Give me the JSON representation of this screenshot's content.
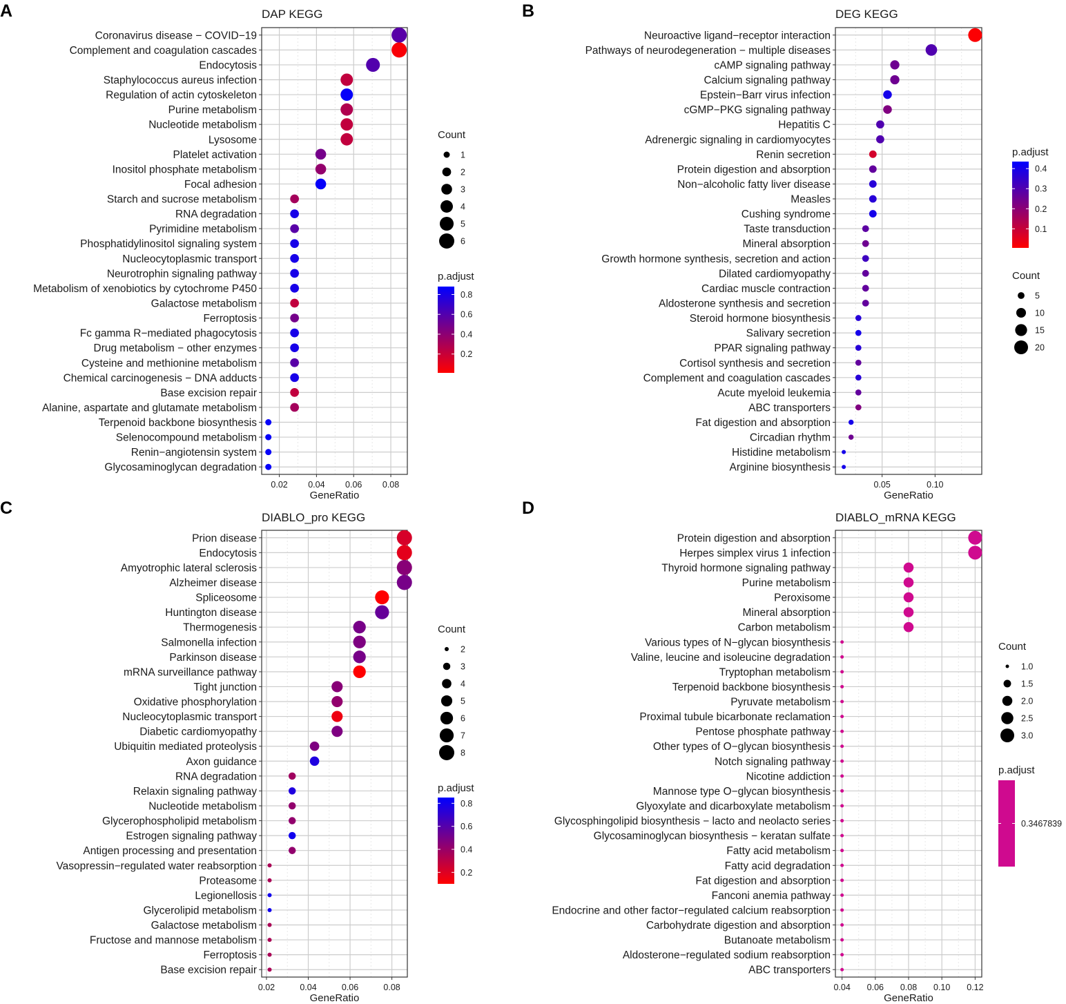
{
  "figure": {
    "panel_letters": [
      "A",
      "B",
      "C",
      "D"
    ]
  },
  "chart_data": [
    {
      "panel": "A",
      "type": "scatter",
      "title": "DAP KEGG",
      "xlabel": "GeneRatio",
      "xlim": [
        0.0105,
        0.0889
      ],
      "xticks": [
        0.02,
        0.04,
        0.06,
        0.08
      ],
      "xtick_labels": [
        "0.02",
        "0.04",
        "0.06",
        "0.08"
      ],
      "categories": [
        "Coronavirus disease − COVID−19",
        "Complement and coagulation cascades",
        "Endocytosis",
        "Staphylococcus aureus infection",
        "Regulation of actin cytoskeleton",
        "Purine metabolism",
        "Nucleotide metabolism",
        "Lysosome",
        "Platelet activation",
        "Inositol phosphate metabolism",
        "Focal adhesion",
        "Starch and sucrose metabolism",
        "RNA degradation",
        "Pyrimidine metabolism",
        "Phosphatidylinositol signaling system",
        "Nucleocytoplasmic transport",
        "Neurotrophin signaling pathway",
        "Metabolism of xenobiotics by cytochrome P450",
        "Galactose metabolism",
        "Ferroptosis",
        "Fc gamma R−mediated phagocytosis",
        "Drug metabolism − other enzymes",
        "Cysteine and methionine metabolism",
        "Chemical carcinogenesis − DNA adducts",
        "Base excision repair",
        "Alanine, aspartate and glutamate metabolism",
        "Terpenoid backbone biosynthesis",
        "Selenocompound metabolism",
        "Renin−angiotensin system",
        "Glycosaminoglycan degradation"
      ],
      "gene_ratio": [
        0.0845,
        0.0845,
        0.0704,
        0.0563,
        0.0563,
        0.0563,
        0.0563,
        0.0563,
        0.0423,
        0.0423,
        0.0423,
        0.0282,
        0.0282,
        0.0282,
        0.0282,
        0.0282,
        0.0282,
        0.0282,
        0.0282,
        0.0282,
        0.0282,
        0.0282,
        0.0282,
        0.0282,
        0.0282,
        0.0282,
        0.0141,
        0.0141,
        0.0141,
        0.0141
      ],
      "count": [
        6,
        6,
        5,
        4,
        4,
        4,
        4,
        4,
        3,
        3,
        3,
        2,
        2,
        2,
        2,
        2,
        2,
        2,
        2,
        2,
        2,
        2,
        2,
        2,
        2,
        2,
        1,
        1,
        1,
        1
      ],
      "p_adjust": [
        0.58,
        0.03,
        0.6,
        0.22,
        0.86,
        0.28,
        0.22,
        0.22,
        0.48,
        0.38,
        0.86,
        0.32,
        0.8,
        0.58,
        0.8,
        0.8,
        0.8,
        0.8,
        0.22,
        0.48,
        0.8,
        0.8,
        0.58,
        0.8,
        0.22,
        0.32,
        0.86,
        0.86,
        0.86,
        0.86
      ],
      "legend_count": {
        "title": "Count",
        "values": [
          1,
          2,
          3,
          4,
          5,
          6
        ],
        "labels": [
          "1",
          "2",
          "3",
          "4",
          "5",
          "6"
        ]
      },
      "legend_color": {
        "title": "p.adjust",
        "min": 0.01,
        "max": 0.88,
        "ticks": [
          0.2,
          0.4,
          0.6,
          0.8
        ],
        "labels": [
          "0.2",
          "0.4",
          "0.6",
          "0.8"
        ]
      },
      "size_domain": [
        1,
        6
      ],
      "size_range": [
        4.5,
        11
      ]
    },
    {
      "panel": "B",
      "type": "scatter",
      "title": "DEG KEGG",
      "xlabel": "GeneRatio",
      "xlim": [
        0.0059,
        0.1441
      ],
      "xticks": [
        0.05,
        0.1
      ],
      "xtick_labels": [
        "0.05",
        "0.10"
      ],
      "categories": [
        "Neuroactive ligand−receptor interaction",
        "Pathways of neurodegeneration − multiple diseases",
        "cAMP signaling pathway",
        "Calcium signaling pathway",
        "Epstein−Barr virus infection",
        "cGMP−PKG signaling pathway",
        "Hepatitis C",
        "Adrenergic signaling in cardiomyocytes",
        "Renin secretion",
        "Protein digestion and absorption",
        "Non−alcoholic fatty liver disease",
        "Measles",
        "Cushing syndrome",
        "Taste transduction",
        "Mineral absorption",
        "Growth hormone synthesis, secretion and action",
        "Dilated cardiomyopathy",
        "Cardiac muscle contraction",
        "Aldosterone synthesis and secretion",
        "Steroid hormone biosynthesis",
        "Salivary secretion",
        "PPAR signaling pathway",
        "Cortisol synthesis and secretion",
        "Complement and coagulation cascades",
        "Acute myeloid leukemia",
        "ABC transporters",
        "Fat digestion and absorption",
        "Circadian rhythm",
        "Histidine metabolism",
        "Arginine biosynthesis"
      ],
      "gene_ratio": [
        0.1378,
        0.0965,
        0.062,
        0.062,
        0.0551,
        0.0551,
        0.0482,
        0.0482,
        0.0413,
        0.0413,
        0.0413,
        0.0413,
        0.0413,
        0.0344,
        0.0344,
        0.0344,
        0.0344,
        0.0344,
        0.0344,
        0.0276,
        0.0276,
        0.0276,
        0.0276,
        0.0276,
        0.0276,
        0.0276,
        0.0207,
        0.0207,
        0.0138,
        0.0138
      ],
      "count": [
        20,
        14,
        9,
        9,
        8,
        8,
        7,
        7,
        6,
        6,
        6,
        6,
        6,
        5,
        5,
        5,
        5,
        5,
        5,
        4,
        4,
        4,
        4,
        4,
        4,
        4,
        3,
        3,
        2,
        2
      ],
      "p_adjust": [
        0.01,
        0.3,
        0.25,
        0.25,
        0.4,
        0.22,
        0.3,
        0.3,
        0.08,
        0.27,
        0.37,
        0.37,
        0.4,
        0.28,
        0.25,
        0.33,
        0.27,
        0.27,
        0.27,
        0.37,
        0.4,
        0.37,
        0.27,
        0.37,
        0.27,
        0.22,
        0.4,
        0.25,
        0.4,
        0.4
      ],
      "legend_count": {
        "title": "Count",
        "values": [
          5,
          10,
          15,
          20
        ],
        "labels": [
          "5",
          "10",
          "15",
          "20"
        ]
      },
      "legend_color": {
        "title": "p.adjust",
        "min": 0.005,
        "max": 0.435,
        "ticks": [
          0.1,
          0.2,
          0.3,
          0.4
        ],
        "labels": [
          "0.1",
          "0.2",
          "0.3",
          "0.4"
        ]
      },
      "size_domain": [
        2,
        20
      ],
      "size_range": [
        3,
        10
      ]
    },
    {
      "panel": "C",
      "type": "scatter",
      "title": "DIABLO_pro KEGG",
      "xlabel": "GeneRatio",
      "xlim": [
        0.0177,
        0.0874
      ],
      "xticks": [
        0.02,
        0.04,
        0.06,
        0.08
      ],
      "xtick_labels": [
        "0.02",
        "0.04",
        "0.06",
        "0.08"
      ],
      "categories": [
        "Prion disease",
        "Endocytosis",
        "Amyotrophic lateral sclerosis",
        "Alzheimer disease",
        "Spliceosome",
        "Huntington disease",
        "Thermogenesis",
        "Salmonella infection",
        "Parkinson disease",
        "mRNA surveillance pathway",
        "Tight junction",
        "Oxidative phosphorylation",
        "Nucleocytoplasmic transport",
        "Diabetic cardiomyopathy",
        "Ubiquitin mediated proteolysis",
        "Axon guidance",
        "RNA degradation",
        "Relaxin signaling pathway",
        "Nucleotide metabolism",
        "Glycerophospholipid metabolism",
        "Estrogen signaling pathway",
        "Antigen processing and presentation",
        "Vasopressin−regulated water reabsorption",
        "Proteasome",
        "Legionellosis",
        "Glycerolipid metabolism",
        "Galactose metabolism",
        "Fructose and mannose metabolism",
        "Ferroptosis",
        "Base excision repair"
      ],
      "gene_ratio": [
        0.086,
        0.086,
        0.086,
        0.086,
        0.0753,
        0.0753,
        0.0645,
        0.0645,
        0.0645,
        0.0645,
        0.0538,
        0.0538,
        0.0538,
        0.0538,
        0.043,
        0.043,
        0.0323,
        0.0323,
        0.0323,
        0.0323,
        0.0323,
        0.0323,
        0.0215,
        0.0215,
        0.0215,
        0.0215,
        0.0215,
        0.0215,
        0.0215,
        0.0215
      ],
      "count": [
        8,
        8,
        8,
        8,
        7,
        7,
        6,
        6,
        6,
        6,
        5,
        5,
        5,
        5,
        4,
        4,
        3,
        3,
        3,
        3,
        3,
        3,
        2,
        2,
        2,
        2,
        2,
        2,
        2,
        2
      ],
      "p_adjust": [
        0.22,
        0.18,
        0.45,
        0.5,
        0.03,
        0.55,
        0.5,
        0.48,
        0.5,
        0.03,
        0.45,
        0.42,
        0.15,
        0.48,
        0.48,
        0.76,
        0.38,
        0.76,
        0.42,
        0.42,
        0.8,
        0.42,
        0.35,
        0.35,
        0.8,
        0.8,
        0.35,
        0.35,
        0.35,
        0.35
      ],
      "legend_count": {
        "title": "Count",
        "values": [
          2,
          3,
          4,
          5,
          6,
          7,
          8
        ],
        "labels": [
          "2",
          "3",
          "4",
          "5",
          "6",
          "7",
          "8"
        ]
      },
      "legend_color": {
        "title": "p.adjust",
        "min": 0.1,
        "max": 0.85,
        "ticks": [
          0.2,
          0.4,
          0.6,
          0.8
        ],
        "labels": [
          "0.2",
          "0.4",
          "0.6",
          "0.8"
        ]
      },
      "size_domain": [
        2,
        8
      ],
      "size_range": [
        3,
        11
      ]
    },
    {
      "panel": "D",
      "type": "scatter",
      "title": "DIABLO_mRNA KEGG",
      "xlabel": "GeneRatio",
      "xlim": [
        0.036,
        0.124
      ],
      "xticks": [
        0.04,
        0.06,
        0.08,
        0.1,
        0.12
      ],
      "xtick_labels": [
        "0.04",
        "0.06",
        "0.08",
        "0.10",
        "0.12"
      ],
      "categories": [
        "Protein digestion and absorption",
        "Herpes simplex virus 1 infection",
        "Thyroid hormone signaling pathway",
        "Purine metabolism",
        "Peroxisome",
        "Mineral absorption",
        "Carbon metabolism",
        "Various types of N−glycan biosynthesis",
        "Valine, leucine and isoleucine degradation",
        "Tryptophan metabolism",
        "Terpenoid backbone biosynthesis",
        "Pyruvate metabolism",
        "Proximal tubule bicarbonate reclamation",
        "Pentose phosphate pathway",
        "Other types of O−glycan biosynthesis",
        "Notch signaling pathway",
        "Nicotine addiction",
        "Mannose type O−glycan biosynthesis",
        "Glyoxylate and dicarboxylate metabolism",
        "Glycosphingolipid biosynthesis − lacto and neolacto series",
        "Glycosaminoglycan biosynthesis − keratan sulfate",
        "Fatty acid metabolism",
        "Fatty acid degradation",
        "Fat digestion and absorption",
        "Fanconi anemia pathway",
        "Endocrine and other factor−regulated calcium reabsorption",
        "Carbohydrate digestion and absorption",
        "Butanoate metabolism",
        "Aldosterone−regulated sodium reabsorption",
        "ABC transporters"
      ],
      "gene_ratio": [
        0.12,
        0.12,
        0.08,
        0.08,
        0.08,
        0.08,
        0.08,
        0.04,
        0.04,
        0.04,
        0.04,
        0.04,
        0.04,
        0.04,
        0.04,
        0.04,
        0.04,
        0.04,
        0.04,
        0.04,
        0.04,
        0.04,
        0.04,
        0.04,
        0.04,
        0.04,
        0.04,
        0.04,
        0.04,
        0.04
      ],
      "count": [
        3,
        3,
        2,
        2,
        2,
        2,
        2,
        1,
        1,
        1,
        1,
        1,
        1,
        1,
        1,
        1,
        1,
        1,
        1,
        1,
        1,
        1,
        1,
        1,
        1,
        1,
        1,
        1,
        1,
        1
      ],
      "p_adjust": [
        0.3467839,
        0.3467839,
        0.3467839,
        0.3467839,
        0.3467839,
        0.3467839,
        0.3467839,
        0.3467839,
        0.3467839,
        0.3467839,
        0.3467839,
        0.3467839,
        0.3467839,
        0.3467839,
        0.3467839,
        0.3467839,
        0.3467839,
        0.3467839,
        0.3467839,
        0.3467839,
        0.3467839,
        0.3467839,
        0.3467839,
        0.3467839,
        0.3467839,
        0.3467839,
        0.3467839,
        0.3467839,
        0.3467839,
        0.3467839
      ],
      "legend_count": {
        "title": "Count",
        "values": [
          1.0,
          1.5,
          2.0,
          2.5,
          3.0
        ],
        "labels": [
          "1.0",
          "1.5",
          "2.0",
          "2.5",
          "3.0"
        ]
      },
      "legend_color": {
        "title": "p.adjust",
        "min": 0.3467839,
        "max": 0.3467839,
        "ticks": [
          0.3467839
        ],
        "labels": [
          "0.3467839"
        ],
        "constant_color": "#cf0a8f"
      },
      "size_domain": [
        1,
        3
      ],
      "size_range": [
        2.5,
        10
      ]
    }
  ],
  "colors": {
    "low": "#ff0000",
    "high": "#0000ff",
    "grid_major": "#cccccc",
    "grid_minor": "#e8e8e8",
    "axis": "#333333",
    "text": "#1a1a1a",
    "panel_bg": "#ffffff"
  }
}
